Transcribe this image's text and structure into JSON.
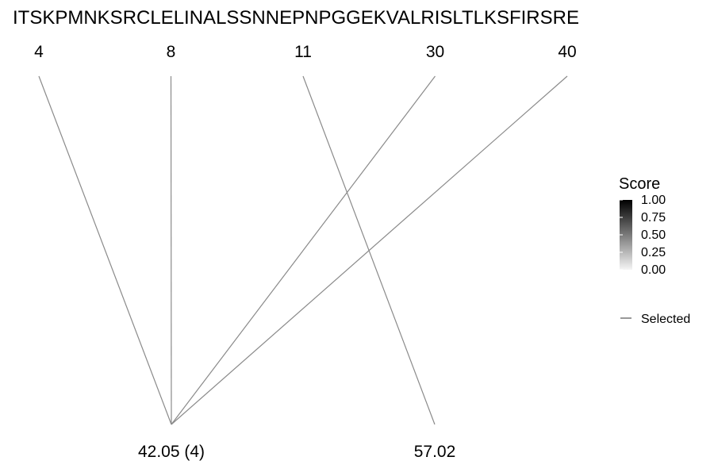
{
  "chart_data": {
    "type": "line",
    "sequence": "ITSKPMNKSRCLELINALSSNNEPNPGGEKVALRISLTLKSFIRSRE",
    "top_positions": [
      "4",
      "8",
      "11",
      "30",
      "40"
    ],
    "bottom_labels": [
      "42.05 (4)",
      "57.02"
    ],
    "links": [
      {
        "from": "4",
        "to": "42.05 (4)"
      },
      {
        "from": "8",
        "to": "42.05 (4)"
      },
      {
        "from": "30",
        "to": "42.05 (4)"
      },
      {
        "from": "40",
        "to": "42.05 (4)"
      },
      {
        "from": "11",
        "to": "57.02"
      }
    ],
    "legend": {
      "score_title": "Score",
      "score_ticks": [
        "1.00",
        "0.75",
        "0.50",
        "0.25",
        "0.00"
      ],
      "score_range": [
        0,
        1
      ],
      "selected_label": "Selected"
    },
    "colors": {
      "link": "#8a8a8a",
      "text": "#000000"
    }
  }
}
